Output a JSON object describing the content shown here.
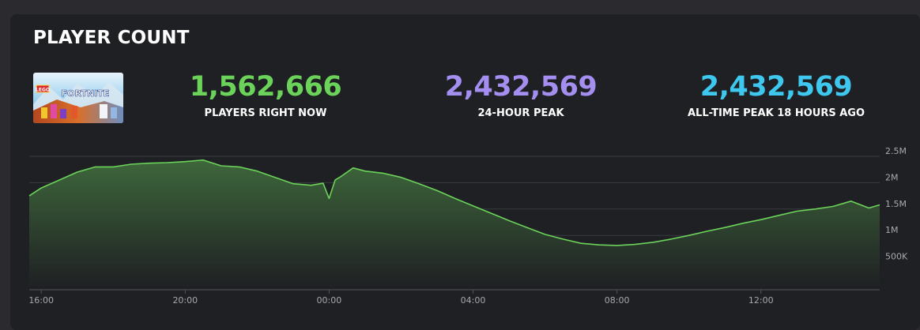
{
  "panel": {
    "title": "PLAYER COUNT"
  },
  "game": {
    "thumbnail_icon": "fortnite-cover-art",
    "thumbnail_text": "FORTNITE",
    "thumbnail_logo_text": "LEGO"
  },
  "stats": [
    {
      "value": "1,562,666",
      "label": "PLAYERS RIGHT NOW",
      "color": "#6bd35a"
    },
    {
      "value": "2,432,569",
      "label": "24-HOUR PEAK",
      "color": "#a48ef0"
    },
    {
      "value": "2,432,569",
      "label": "ALL-TIME PEAK 18 HOURS AGO",
      "color": "#3ec8ef"
    }
  ],
  "colors": {
    "line": "#6bd35a",
    "grid": "#3a3b3f",
    "background": "#1f2023"
  },
  "chart_data": {
    "type": "area",
    "xlabel": "",
    "ylabel": "",
    "x_ticks": [
      "16:00",
      "20:00",
      "00:00",
      "04:00",
      "08:00",
      "12:00"
    ],
    "y_ticks": [
      "500K",
      "1M",
      "1.5M",
      "2M",
      "2.5M"
    ],
    "y_tick_values": [
      500000,
      1000000,
      1500000,
      2000000,
      2500000
    ],
    "ylim": [
      0,
      2500000
    ],
    "xlim_hours": [
      15.67,
      15.3
    ],
    "grid": true,
    "series": [
      {
        "x": [
          "15:40",
          "16:00",
          "16:30",
          "17:00",
          "17:30",
          "18:00",
          "18:30",
          "19:00",
          "19:30",
          "20:00",
          "20:30",
          "21:00",
          "21:30",
          "22:00",
          "22:30",
          "23:00",
          "23:30",
          "23:50",
          "24:00",
          "24:10",
          "24:20",
          "24:40",
          "25:00",
          "25:30",
          "26:00",
          "26:30",
          "27:00",
          "27:30",
          "28:00",
          "28:30",
          "29:00",
          "29:30",
          "30:00",
          "30:30",
          "31:00",
          "31:30",
          "32:00",
          "32:30",
          "33:00",
          "33:30",
          "34:00",
          "34:30",
          "35:00",
          "35:30",
          "36:00",
          "36:30",
          "37:00",
          "37:30",
          "38:00",
          "38:30",
          "39:00",
          "39:18"
        ],
        "values": [
          1750000,
          1900000,
          2050000,
          2200000,
          2300000,
          2300000,
          2350000,
          2370000,
          2380000,
          2400000,
          2430000,
          2320000,
          2300000,
          2220000,
          2100000,
          1980000,
          1950000,
          1990000,
          1700000,
          2050000,
          2120000,
          2280000,
          2220000,
          2180000,
          2100000,
          1980000,
          1850000,
          1700000,
          1560000,
          1420000,
          1280000,
          1150000,
          1020000,
          930000,
          850000,
          820000,
          810000,
          830000,
          870000,
          930000,
          1000000,
          1080000,
          1150000,
          1230000,
          1300000,
          1380000,
          1460000,
          1500000,
          1550000,
          1650000,
          1520000,
          1580000
        ]
      }
    ]
  }
}
